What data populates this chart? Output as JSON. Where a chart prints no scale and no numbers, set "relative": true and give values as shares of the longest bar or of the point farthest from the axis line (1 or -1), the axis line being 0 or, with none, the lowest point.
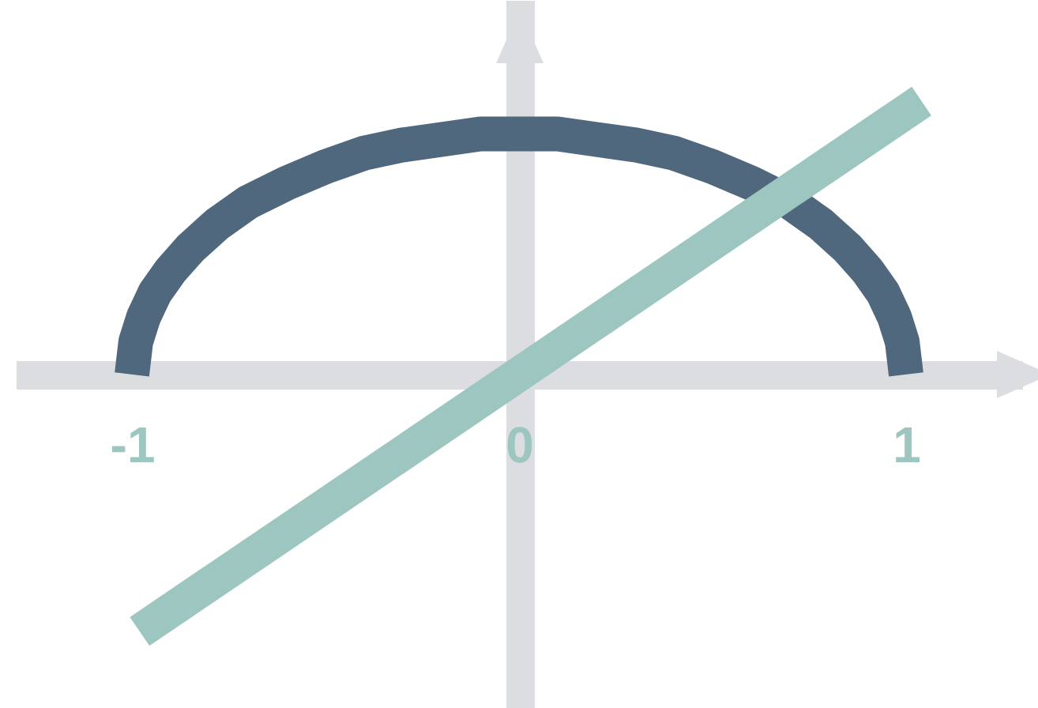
{
  "chart_data": {
    "type": "line",
    "relative": true,
    "xlim": [
      -1.3,
      1.3
    ],
    "xticks": [
      -1,
      0,
      1
    ],
    "series": [
      {
        "color": "#4f687d",
        "x": [
          -1,
          -0.99,
          -0.97,
          -0.94,
          -0.9,
          -0.85,
          -0.78,
          -0.7,
          -0.6,
          -0.5,
          -0.4,
          -0.3,
          -0.2,
          -0.1,
          0,
          0.1,
          0.2,
          0.3,
          0.4,
          0.5,
          0.6,
          0.7,
          0.78,
          0.85,
          0.9,
          0.94,
          0.97,
          0.99,
          1
        ],
        "values": [
          0,
          0.12,
          0.21,
          0.3,
          0.38,
          0.46,
          0.55,
          0.63,
          0.7,
          0.76,
          0.81,
          0.84,
          0.86,
          0.88,
          0.88,
          0.88,
          0.86,
          0.84,
          0.81,
          0.76,
          0.7,
          0.63,
          0.55,
          0.46,
          0.38,
          0.3,
          0.21,
          0.12,
          0
        ]
      },
      {
        "color": "#9dc6c1",
        "x": [
          -0.98,
          1.04
        ],
        "values": [
          -0.94,
          1
        ]
      }
    ]
  }
}
